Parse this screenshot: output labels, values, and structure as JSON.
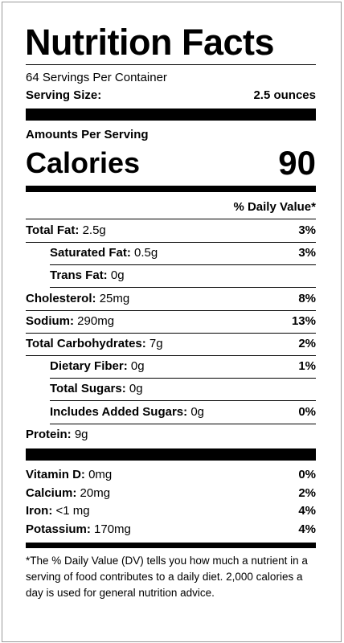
{
  "header": {
    "title": "Nutrition Facts",
    "servings": "64 Servings Per Container",
    "serving_size_label": "Serving Size:",
    "serving_size": "2.5 ounces"
  },
  "calories": {
    "heading": "Amounts Per Serving",
    "label": "Calories",
    "value": "90"
  },
  "dv_heading": "% Daily Value*",
  "nutrients": [
    {
      "label": "Total Fat:",
      "amount": "2.5g",
      "dv": "3%"
    },
    {
      "label": "Saturated Fat:",
      "amount": "0.5g",
      "dv": "3%",
      "indent": true
    },
    {
      "label": "Trans Fat:",
      "amount": "0g",
      "indent": true
    },
    {
      "label": "Cholesterol:",
      "amount": "25mg",
      "dv": "8%"
    },
    {
      "label": "Sodium:",
      "amount": "290mg",
      "dv": "13%"
    },
    {
      "label": "Total Carbohydrates:",
      "amount": "7g",
      "dv": "2%"
    },
    {
      "label": "Dietary Fiber:",
      "amount": "0g",
      "dv": "1%",
      "indent": true
    },
    {
      "label": "Total Sugars:",
      "amount": "0g",
      "indent": true
    },
    {
      "label": "Includes Added Sugars:",
      "amount": "0g",
      "dv": "0%",
      "indent": true
    },
    {
      "label": "Protein:",
      "amount": "9g"
    }
  ],
  "vitamins": [
    {
      "label": "Vitamin D:",
      "amount": "0mg",
      "dv": "0%"
    },
    {
      "label": "Calcium:",
      "amount": "20mg",
      "dv": "2%"
    },
    {
      "label": "Iron:",
      "amount": "<1 mg",
      "dv": "4%"
    },
    {
      "label": "Potassium:",
      "amount": "170mg",
      "dv": "4%"
    }
  ],
  "footnote": "*The % Daily Value (DV) tells you how much a nutrient in a serving of food contributes to a daily diet. 2,000 calories a day is used for general nutrition advice."
}
